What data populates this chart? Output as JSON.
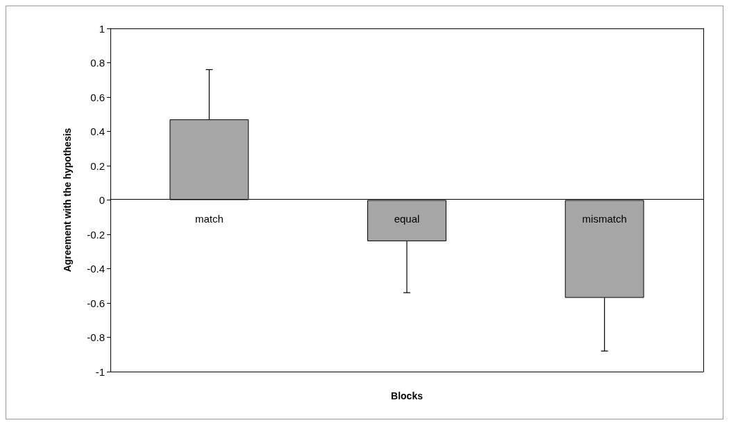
{
  "chart_data": {
    "type": "bar",
    "xlabel": "Blocks",
    "ylabel": "Agreement with the hypothesis",
    "categories": [
      "match",
      "equal",
      "mismatch"
    ],
    "values": [
      0.47,
      -0.24,
      -0.57
    ],
    "errors": [
      [
        0.47,
        0.76
      ],
      [
        -0.54,
        -0.24
      ],
      [
        -0.88,
        -0.57
      ]
    ],
    "color": "#a6a6a6",
    "ylim": [
      -1,
      1
    ],
    "yticks": [
      -1,
      -0.8,
      -0.6,
      -0.4,
      -0.2,
      0,
      0.2,
      0.4,
      0.6,
      0.8,
      1
    ],
    "grid": false
  }
}
